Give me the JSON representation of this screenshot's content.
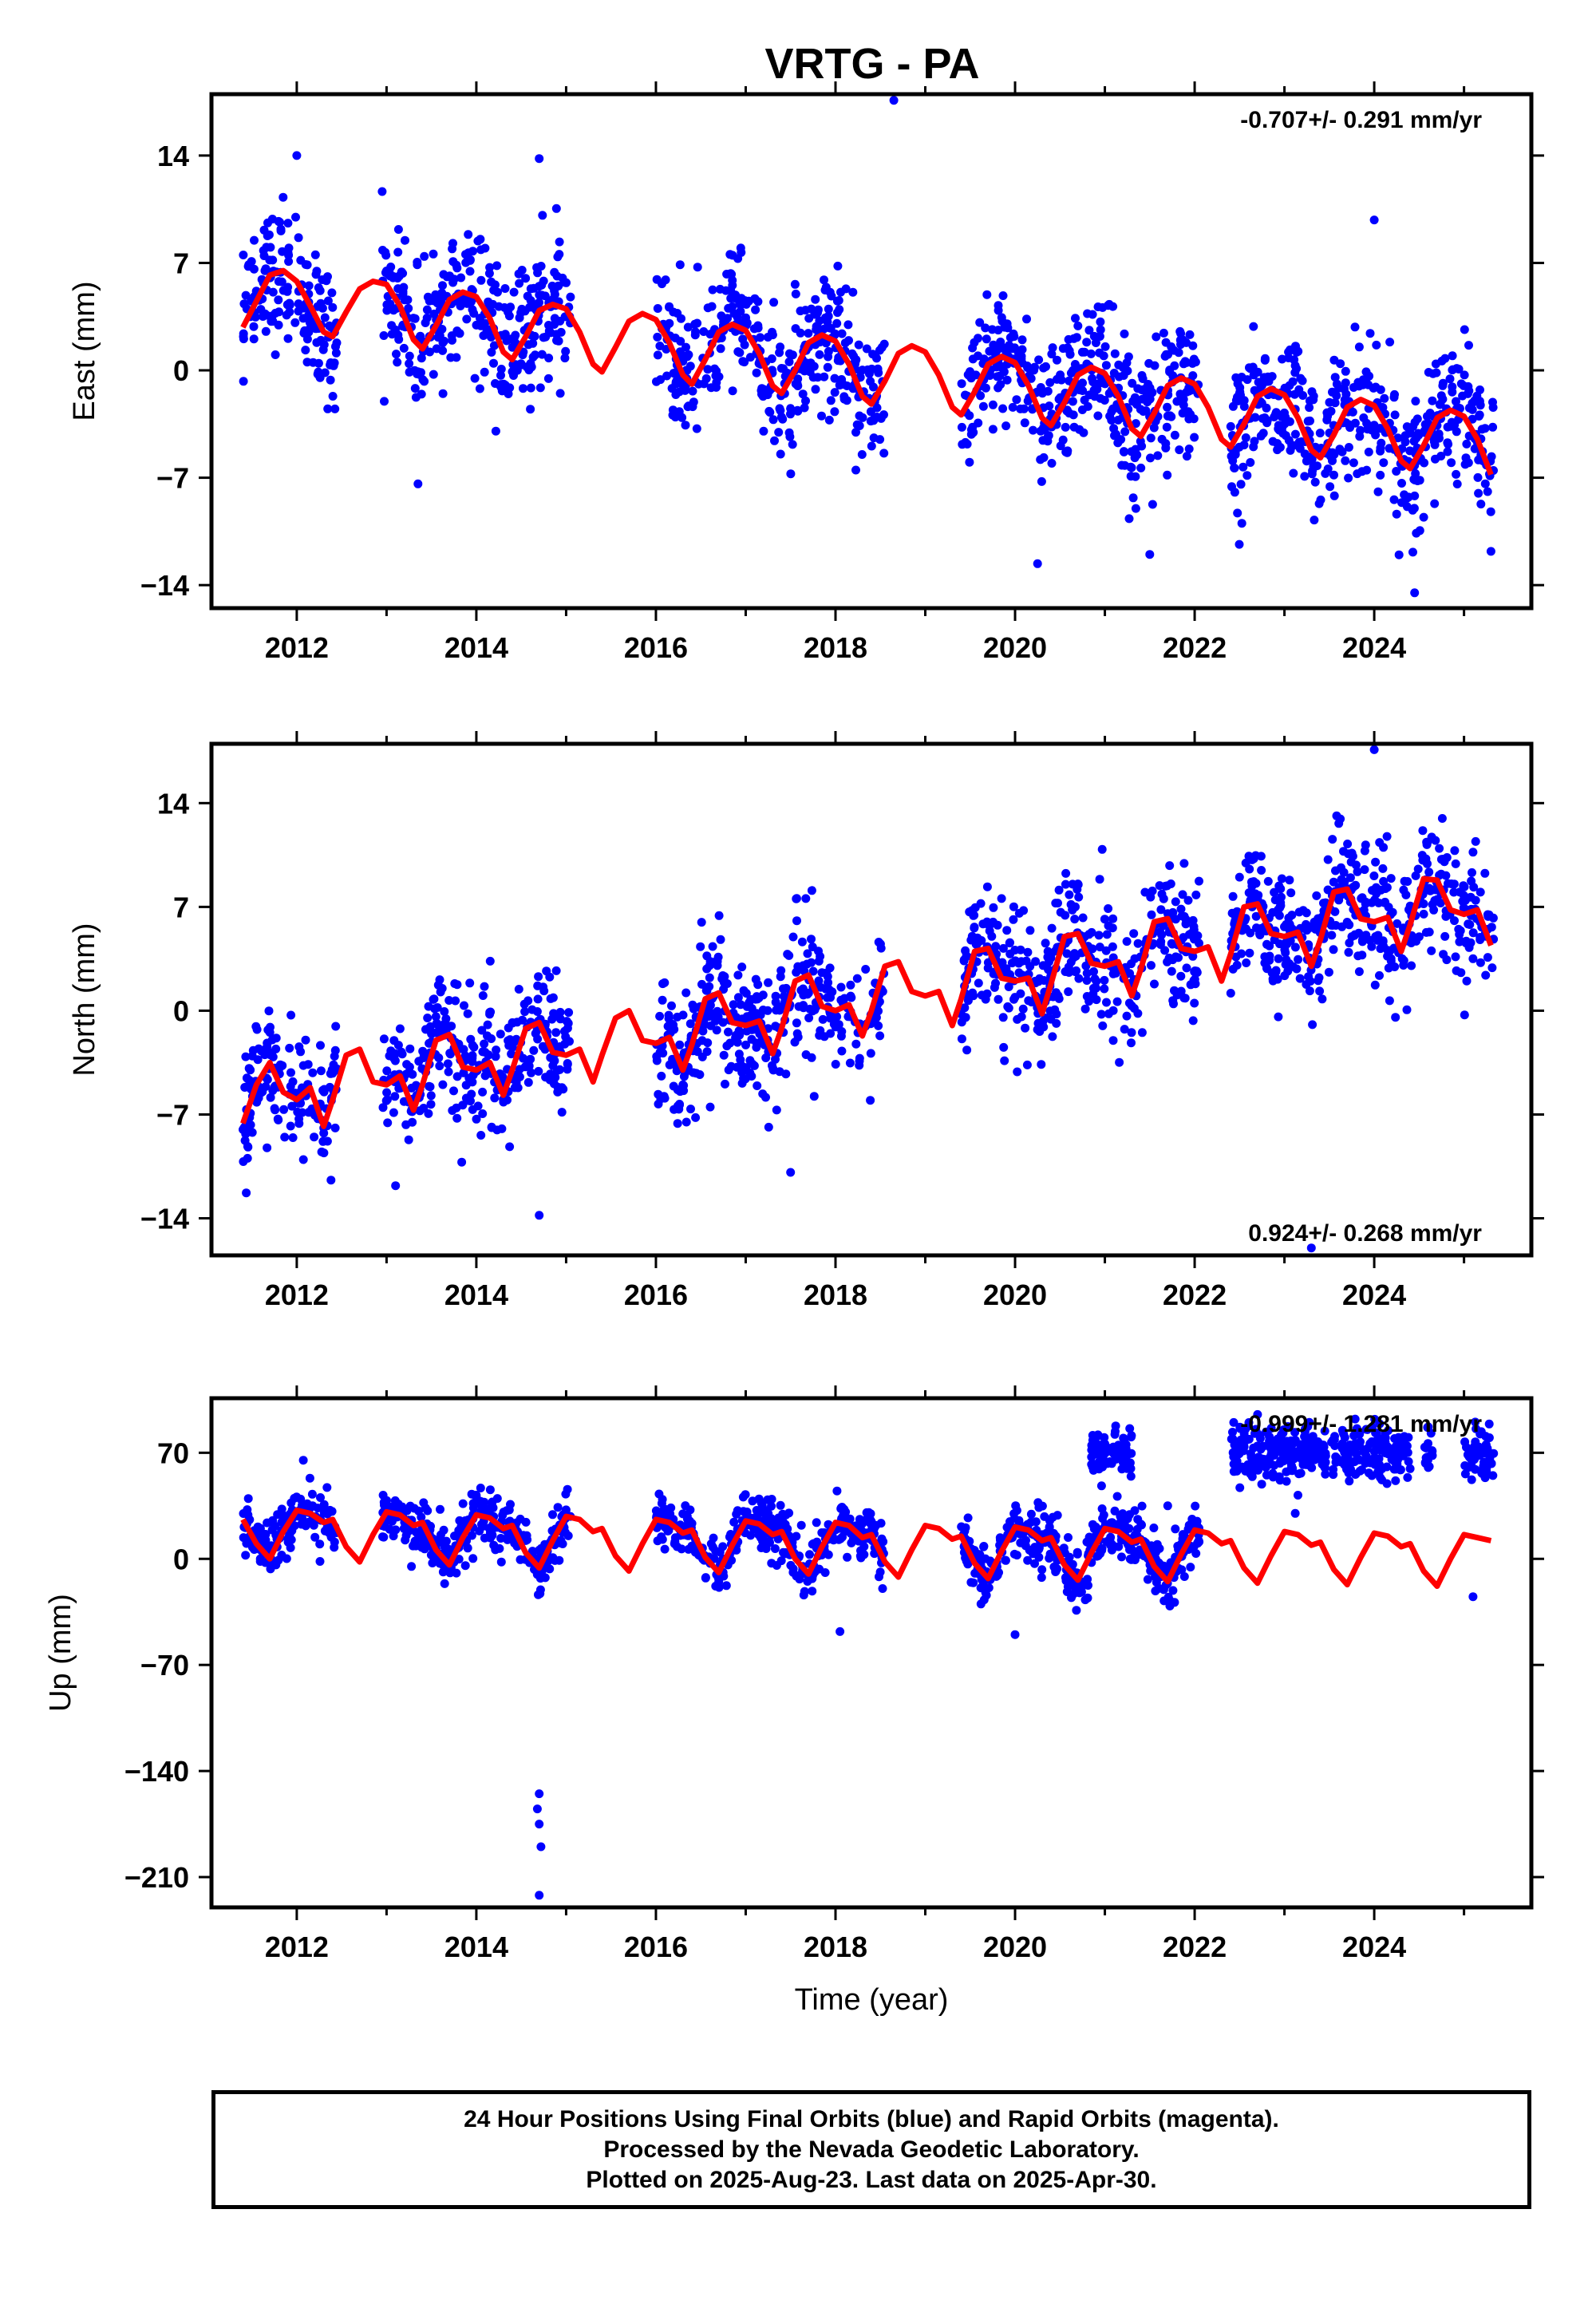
{
  "title": "VRTG - PA",
  "footer": {
    "line1": "24 Hour Positions Using Final Orbits (blue) and Rapid Orbits (magenta).",
    "line2": "Processed by the Nevada Geodetic Laboratory.",
    "line3": "Plotted on 2025-Aug-23. Last data on 2025-Apr-30."
  },
  "colors": {
    "points": "#0000ff",
    "fit": "#ff0000",
    "frame": "#000000"
  },
  "chart_data": [
    {
      "type": "scatter",
      "panel": "east",
      "ylabel": "East (mm)",
      "xlabel": "",
      "rate_label": "-0.707+/- 0.291 mm/yr",
      "rate_label_position": "top-right",
      "xlim": [
        2011.05,
        2025.75
      ],
      "ylim": [
        -15.5,
        18.0
      ],
      "yticks": [
        14,
        7,
        0,
        -7,
        -14
      ],
      "ytick_labels": [
        "14",
        "7",
        "0",
        "−7",
        "−14"
      ],
      "xticks": [
        2012,
        2014,
        2016,
        2018,
        2020,
        2022,
        2024
      ],
      "xtick_labels": [
        "2012",
        "2014",
        "2016",
        "2018",
        "2020",
        "2022",
        "2024"
      ],
      "grid": false,
      "data_segments": [
        [
          2011.4,
          2012.45
        ],
        [
          2012.95,
          2015.05
        ],
        [
          2016.0,
          2018.55
        ],
        [
          2019.4,
          2022.05
        ],
        [
          2022.4,
          2025.33
        ]
      ],
      "fit_curve": {
        "x": [
          2011.4,
          2011.55,
          2011.7,
          2011.85,
          2012.0,
          2012.15,
          2012.3,
          2012.4,
          2012.55,
          2012.7,
          2012.85,
          2013.0,
          2013.15,
          2013.3,
          2013.4,
          2013.55,
          2013.7,
          2013.85,
          2014.0,
          2014.15,
          2014.3,
          2014.4,
          2014.55,
          2014.7,
          2014.85,
          2015.0,
          2015.15,
          2015.3,
          2015.4,
          2015.55,
          2015.7,
          2015.85,
          2016.0,
          2016.15,
          2016.3,
          2016.4,
          2016.55,
          2016.7,
          2016.85,
          2017.0,
          2017.15,
          2017.3,
          2017.4,
          2017.55,
          2017.7,
          2017.85,
          2018.0,
          2018.15,
          2018.3,
          2018.4,
          2018.55,
          2018.7,
          2018.85,
          2019.0,
          2019.15,
          2019.3,
          2019.4,
          2019.55,
          2019.7,
          2019.85,
          2020.0,
          2020.15,
          2020.3,
          2020.4,
          2020.55,
          2020.7,
          2020.85,
          2021.0,
          2021.15,
          2021.3,
          2021.4,
          2021.55,
          2021.7,
          2021.85,
          2022.0,
          2022.15,
          2022.3,
          2022.4,
          2022.55,
          2022.7,
          2022.85,
          2023.0,
          2023.15,
          2023.3,
          2023.4,
          2023.55,
          2023.7,
          2023.85,
          2024.0,
          2024.15,
          2024.3,
          2024.4,
          2024.55,
          2024.7,
          2024.85,
          2025.0,
          2025.15,
          2025.3
        ],
        "y": [
          2.8,
          4.5,
          6.2,
          6.5,
          5.8,
          4.2,
          2.5,
          2.2,
          3.8,
          5.3,
          5.8,
          5.6,
          4.2,
          2.0,
          1.4,
          2.9,
          4.6,
          5.1,
          4.8,
          3.4,
          1.2,
          0.7,
          2.2,
          3.9,
          4.3,
          4.0,
          2.5,
          0.4,
          -0.1,
          1.5,
          3.2,
          3.7,
          3.3,
          1.8,
          -0.3,
          -0.9,
          0.7,
          2.5,
          3.0,
          2.6,
          1.1,
          -1.0,
          -1.5,
          0.0,
          1.8,
          2.3,
          1.9,
          0.4,
          -1.7,
          -2.2,
          -0.7,
          1.1,
          1.6,
          1.2,
          -0.3,
          -2.4,
          -2.9,
          -1.4,
          0.4,
          0.9,
          0.5,
          -1.0,
          -3.1,
          -3.6,
          -2.1,
          -0.3,
          0.2,
          -0.2,
          -1.7,
          -3.8,
          -4.3,
          -2.8,
          -1.0,
          -0.5,
          -0.9,
          -2.4,
          -4.5,
          -5.0,
          -3.5,
          -1.7,
          -1.2,
          -1.6,
          -3.1,
          -5.2,
          -5.7,
          -4.2,
          -2.4,
          -1.9,
          -2.3,
          -3.8,
          -5.9,
          -6.4,
          -4.9,
          -3.1,
          -2.6,
          -3.0,
          -4.5,
          -6.8
        ]
      },
      "outliers": {
        "x": [
          2012.0,
          2013.35,
          2014.7,
          2018.65,
          2020.25,
          2021.5,
          2024.45,
          2024.0,
          2025.3
        ],
        "y": [
          14.0,
          -7.4,
          13.8,
          17.6,
          -12.6,
          -12.0,
          -14.5,
          9.8,
          -11.8
        ]
      }
    },
    {
      "type": "scatter",
      "panel": "north",
      "ylabel": "North (mm)",
      "xlabel": "",
      "rate_label": "0.924+/- 0.268 mm/yr",
      "rate_label_position": "bottom-right",
      "xlim": [
        2011.05,
        2025.75
      ],
      "ylim": [
        -16.5,
        18.0
      ],
      "yticks": [
        14,
        7,
        0,
        -7,
        -14
      ],
      "ytick_labels": [
        "14",
        "7",
        "0",
        "−7",
        "−14"
      ],
      "xticks": [
        2012,
        2014,
        2016,
        2018,
        2020,
        2022,
        2024
      ],
      "xtick_labels": [
        "2012",
        "2014",
        "2016",
        "2018",
        "2020",
        "2022",
        "2024"
      ],
      "grid": false,
      "data_segments": [
        [
          2011.4,
          2012.45
        ],
        [
          2012.95,
          2015.05
        ],
        [
          2016.0,
          2018.55
        ],
        [
          2019.4,
          2022.05
        ],
        [
          2022.4,
          2025.33
        ]
      ],
      "fit_curve": {
        "x": [
          2011.4,
          2011.55,
          2011.7,
          2011.85,
          2012.0,
          2012.15,
          2012.3,
          2012.4,
          2012.55,
          2012.7,
          2012.85,
          2013.0,
          2013.15,
          2013.3,
          2013.4,
          2013.55,
          2013.7,
          2013.85,
          2014.0,
          2014.15,
          2014.3,
          2014.4,
          2014.55,
          2014.7,
          2014.85,
          2015.0,
          2015.15,
          2015.3,
          2015.4,
          2015.55,
          2015.7,
          2015.85,
          2016.0,
          2016.15,
          2016.3,
          2016.4,
          2016.55,
          2016.7,
          2016.85,
          2017.0,
          2017.15,
          2017.3,
          2017.4,
          2017.55,
          2017.7,
          2017.85,
          2018.0,
          2018.15,
          2018.3,
          2018.4,
          2018.55,
          2018.7,
          2018.85,
          2019.0,
          2019.15,
          2019.3,
          2019.4,
          2019.55,
          2019.7,
          2019.85,
          2020.0,
          2020.15,
          2020.3,
          2020.4,
          2020.55,
          2020.7,
          2020.85,
          2021.0,
          2021.15,
          2021.3,
          2021.4,
          2021.55,
          2021.7,
          2021.85,
          2022.0,
          2022.15,
          2022.3,
          2022.4,
          2022.55,
          2022.7,
          2022.85,
          2023.0,
          2023.15,
          2023.3,
          2023.4,
          2023.55,
          2023.7,
          2023.85,
          2024.0,
          2024.15,
          2024.3,
          2024.4,
          2024.55,
          2024.7,
          2024.85,
          2025.0,
          2025.15,
          2025.3
        ],
        "y": [
          -7.6,
          -5.0,
          -3.5,
          -5.5,
          -6.0,
          -5.2,
          -7.8,
          -6.0,
          -3.0,
          -2.6,
          -4.8,
          -5.0,
          -4.4,
          -6.7,
          -5.0,
          -2.0,
          -1.6,
          -3.8,
          -4.0,
          -3.5,
          -5.7,
          -4.0,
          -1.2,
          -0.8,
          -2.8,
          -3.0,
          -2.6,
          -4.8,
          -3.0,
          -0.5,
          0.0,
          -2.0,
          -2.2,
          -1.8,
          -4.0,
          -2.3,
          0.8,
          1.2,
          -0.8,
          -1.0,
          -0.7,
          -2.9,
          -1.2,
          2.0,
          2.4,
          0.3,
          0.0,
          0.4,
          -1.7,
          0.0,
          3.0,
          3.3,
          1.3,
          1.0,
          1.3,
          -1.0,
          0.8,
          4.0,
          4.2,
          2.2,
          2.0,
          2.2,
          -0.2,
          1.8,
          5.0,
          5.2,
          3.2,
          3.0,
          3.3,
          1.0,
          2.8,
          6.0,
          6.2,
          4.2,
          4.0,
          4.3,
          2.0,
          3.8,
          7.0,
          7.2,
          5.2,
          5.0,
          5.3,
          3.0,
          4.8,
          8.0,
          8.2,
          6.2,
          6.0,
          6.3,
          4.0,
          5.8,
          8.9,
          8.8,
          6.8,
          6.5,
          6.8,
          4.4
        ]
      },
      "outliers": {
        "x": [
          2013.1,
          2014.7,
          2017.5,
          2023.3,
          2024.0
        ],
        "y": [
          -11.8,
          -13.8,
          -10.9,
          -16.0,
          17.6
        ]
      }
    },
    {
      "type": "scatter",
      "panel": "up",
      "ylabel": "Up (mm)",
      "xlabel": "Time (year)",
      "rate_label": "-0.999+/- 1.281 mm/yr",
      "rate_label_position": "top-right",
      "xlim": [
        2011.05,
        2025.75
      ],
      "ylim": [
        -230,
        106
      ],
      "yticks": [
        70,
        0,
        -70,
        -140,
        -210
      ],
      "ytick_labels": [
        "70",
        "0",
        "−70",
        "−140",
        "−210"
      ],
      "xticks": [
        2012,
        2014,
        2016,
        2018,
        2020,
        2022,
        2024
      ],
      "xtick_labels": [
        "2012",
        "2014",
        "2016",
        "2018",
        "2020",
        "2022",
        "2024"
      ],
      "grid": false,
      "data_segments": [
        [
          2011.4,
          2012.45
        ],
        [
          2012.95,
          2015.05
        ],
        [
          2016.0,
          2018.55
        ],
        [
          2019.4,
          2022.05
        ]
      ],
      "high_clusters": [
        [
          2020.85,
          2021.3
        ],
        [
          2022.4,
          2024.4
        ],
        [
          2024.55,
          2024.65
        ],
        [
          2025.0,
          2025.33
        ]
      ],
      "fit_curve": {
        "x": [
          2011.4,
          2011.55,
          2011.7,
          2011.85,
          2012.0,
          2012.15,
          2012.3,
          2012.4,
          2012.55,
          2012.7,
          2012.85,
          2013.0,
          2013.15,
          2013.3,
          2013.4,
          2013.55,
          2013.7,
          2013.85,
          2014.0,
          2014.15,
          2014.3,
          2014.4,
          2014.55,
          2014.7,
          2014.85,
          2015.0,
          2015.15,
          2015.3,
          2015.4,
          2015.55,
          2015.7,
          2015.85,
          2016.0,
          2016.15,
          2016.3,
          2016.4,
          2016.55,
          2016.7,
          2016.85,
          2017.0,
          2017.15,
          2017.3,
          2017.4,
          2017.55,
          2017.7,
          2017.85,
          2018.0,
          2018.15,
          2018.3,
          2018.4,
          2018.55,
          2018.7,
          2018.85,
          2019.0,
          2019.15,
          2019.3,
          2019.4,
          2019.55,
          2019.7,
          2019.85,
          2020.0,
          2020.15,
          2020.3,
          2020.4,
          2020.55,
          2020.7,
          2020.85,
          2021.0,
          2021.15,
          2021.3,
          2021.4,
          2021.55,
          2021.7,
          2021.85,
          2022.0,
          2022.15,
          2022.3,
          2022.4,
          2022.55,
          2022.7,
          2022.85,
          2023.0,
          2023.15,
          2023.3,
          2023.4,
          2023.55,
          2023.7,
          2023.85,
          2024.0,
          2024.15,
          2024.3,
          2024.4,
          2024.55,
          2024.7,
          2024.85,
          2025.0,
          2025.15,
          2025.3
        ],
        "y": [
          26,
          10,
          0,
          18,
          32,
          30,
          24,
          26,
          8,
          -2,
          16,
          31,
          29,
          22,
          24,
          6,
          -4,
          14,
          29,
          27,
          20,
          22,
          4,
          -6,
          12,
          28,
          26,
          18,
          20,
          2,
          -8,
          10,
          26,
          24,
          17,
          19,
          1,
          -9,
          9,
          25,
          23,
          16,
          18,
          0,
          -10,
          8,
          24,
          22,
          14,
          16,
          -2,
          -12,
          6,
          22,
          20,
          13,
          15,
          -3,
          -13,
          5,
          21,
          19,
          12,
          14,
          -4,
          -14,
          4,
          20,
          18,
          11,
          13,
          -5,
          -15,
          3,
          19,
          17,
          10,
          12,
          -6,
          -16,
          2,
          18,
          16,
          9,
          11,
          -7,
          -17,
          1,
          17,
          15,
          8,
          10,
          -8,
          -18,
          0,
          16,
          14,
          12
        ]
      },
      "outliers": {
        "x": [
          2014.7,
          2014.7,
          2014.72,
          2014.68,
          2014.7,
          2018.05,
          2020.0,
          2021.7,
          2023.15,
          2023.12,
          2025.1
        ],
        "y": [
          -155,
          -175,
          -190,
          -165,
          -222,
          -48,
          -50,
          35,
          42,
          30,
          -25
        ]
      }
    }
  ]
}
